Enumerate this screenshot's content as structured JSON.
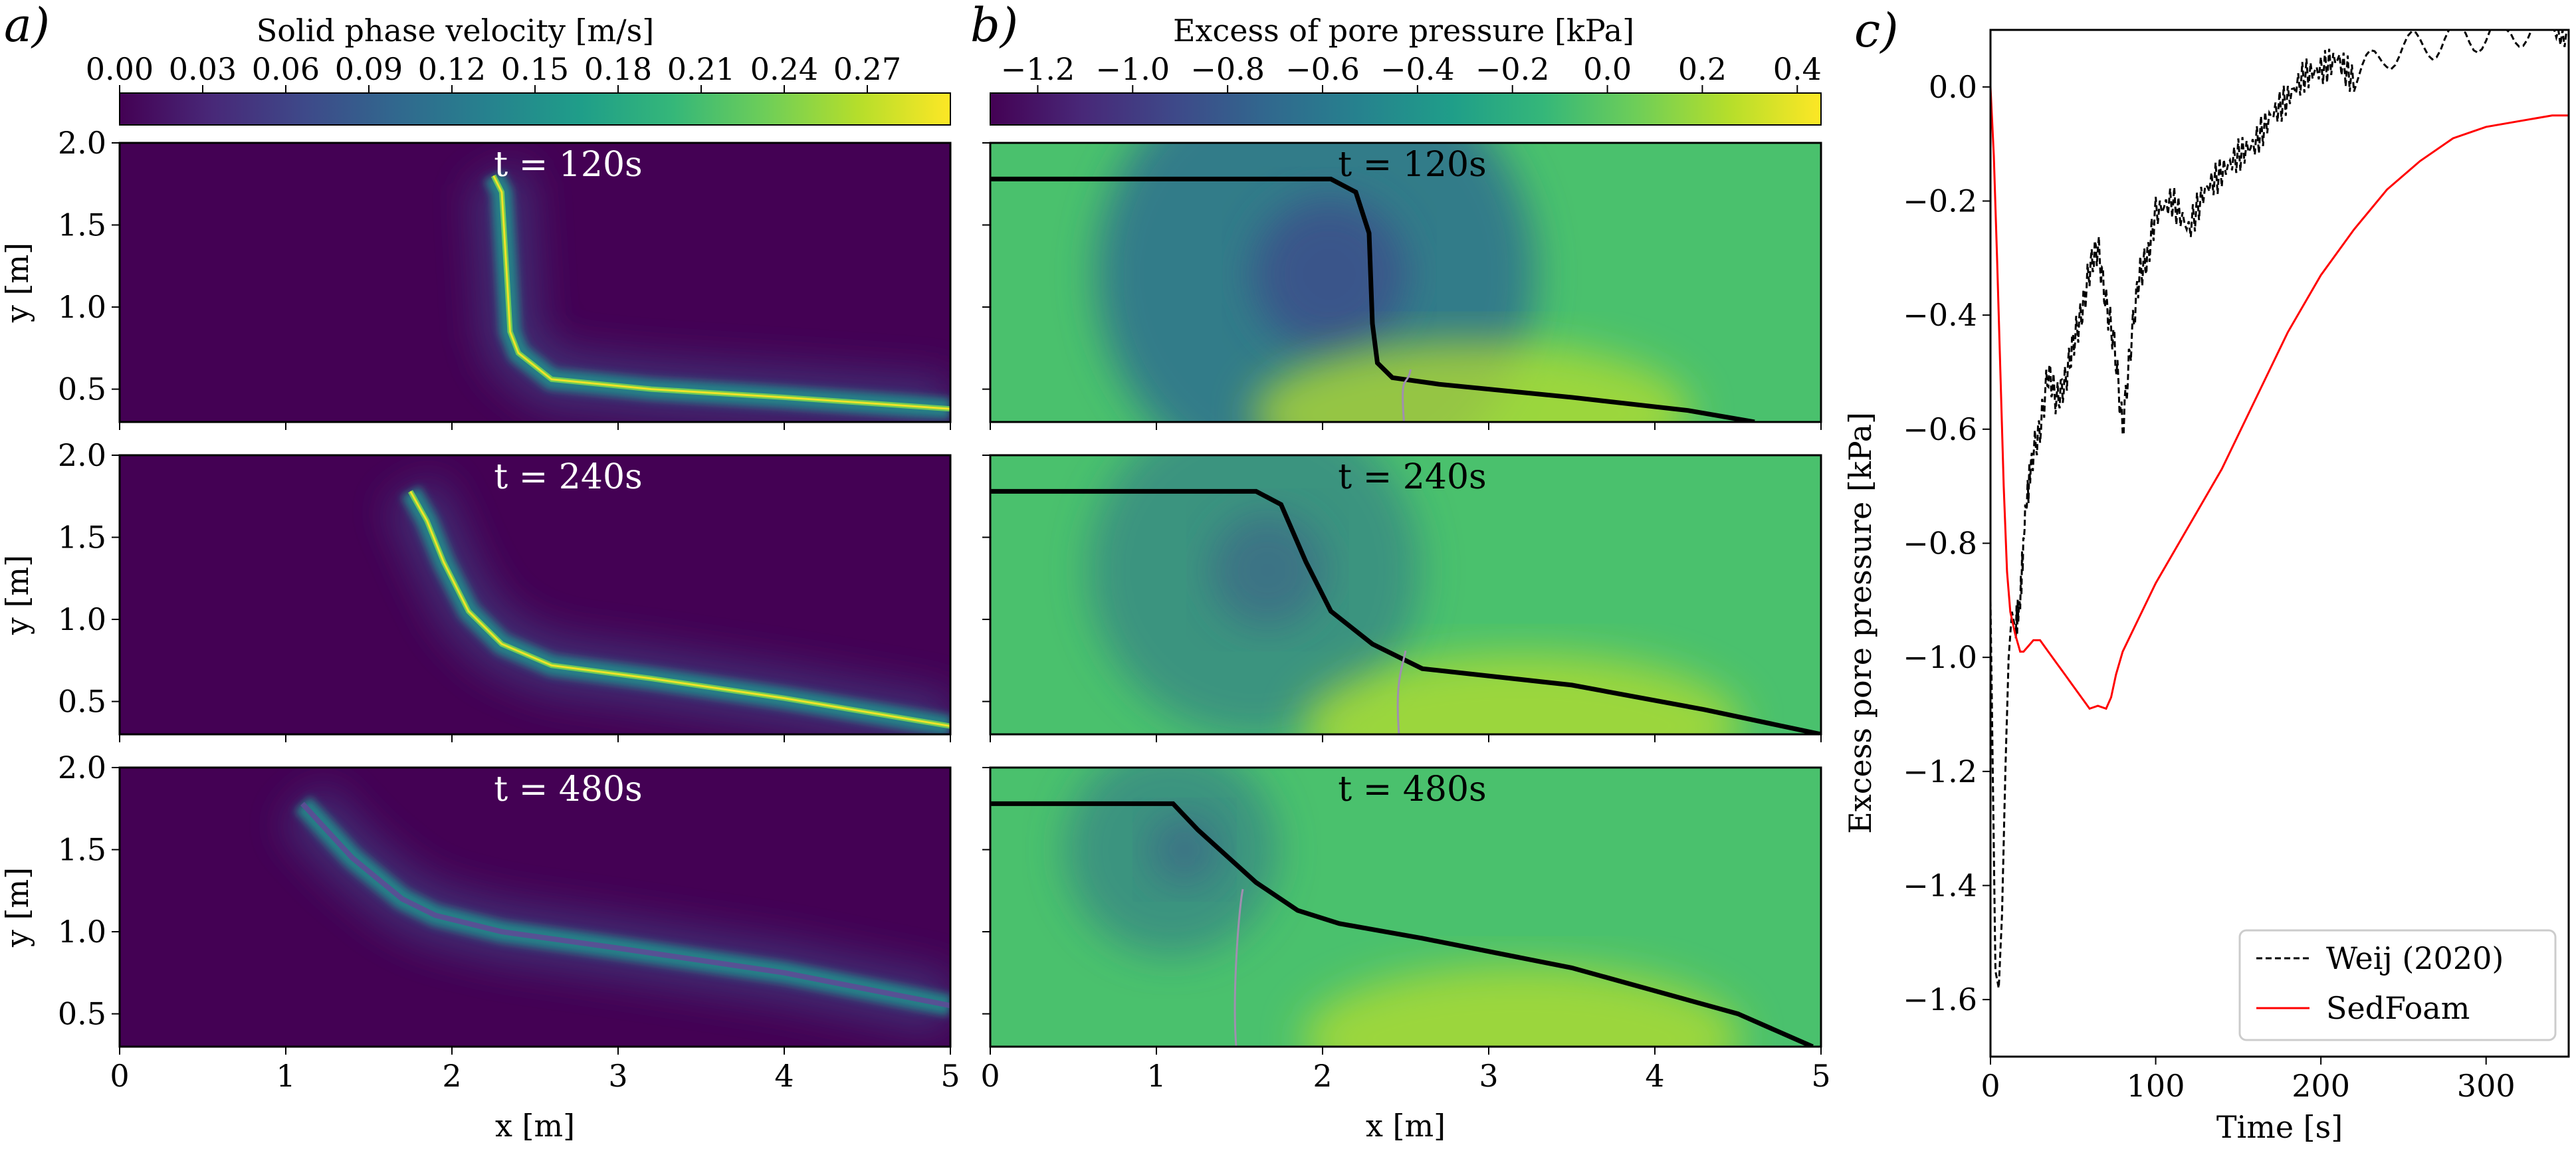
{
  "figure": {
    "panel_labels": [
      "a)",
      "b)",
      "c)"
    ],
    "time_labels": [
      "t = 120s",
      "t = 240s",
      "t = 480s"
    ]
  },
  "colors": {
    "viridis": [
      "#440154",
      "#482878",
      "#3e4989",
      "#31688e",
      "#26828e",
      "#1f9e89",
      "#35b779",
      "#6ece58",
      "#b5de2b",
      "#fde725"
    ],
    "velocity_background": "#440154",
    "pressure_background": "#4ac16d",
    "weij_line": "#000000",
    "sedfoam_line": "#ff0000",
    "bed_line": "#000000"
  },
  "chart_data": [
    {
      "id": "solid-velocity",
      "type": "heatmap",
      "panel": "a)",
      "colorbar": {
        "title": "Solid phase velocity [m/s]",
        "ticks": [
          "0.00",
          "0.03",
          "0.06",
          "0.09",
          "0.12",
          "0.15",
          "0.18",
          "0.21",
          "0.24",
          "0.27"
        ],
        "range": [
          0,
          0.3
        ]
      },
      "xlabel": "x [m]",
      "ylabel": "y [m]",
      "xlim": [
        0,
        5
      ],
      "ylim": [
        0.3,
        2.0
      ],
      "xticks": [
        "0",
        "1",
        "2",
        "3",
        "4",
        "5"
      ],
      "yticks": [
        "0.5",
        "1.0",
        "1.5",
        "2.0"
      ],
      "snapshots": [
        {
          "time": "t = 120s",
          "flow_x": [
            2.25,
            2.3,
            2.33,
            2.35,
            2.4,
            2.6,
            3.2,
            4.0,
            5.0
          ],
          "flow_y": [
            1.8,
            1.7,
            1.2,
            0.85,
            0.72,
            0.56,
            0.5,
            0.45,
            0.38
          ]
        },
        {
          "time": "t = 240s",
          "flow_x": [
            1.75,
            1.85,
            1.95,
            2.1,
            2.3,
            2.6,
            3.2,
            4.0,
            5.0
          ],
          "flow_y": [
            1.78,
            1.6,
            1.35,
            1.05,
            0.85,
            0.72,
            0.64,
            0.52,
            0.35
          ]
        },
        {
          "time": "t = 480s",
          "flow_x": [
            1.1,
            1.4,
            1.7,
            1.9,
            2.3,
            3.0,
            4.0,
            5.0
          ],
          "flow_y": [
            1.78,
            1.45,
            1.2,
            1.1,
            1.0,
            0.9,
            0.75,
            0.55
          ]
        }
      ]
    },
    {
      "id": "pore-pressure",
      "type": "heatmap",
      "panel": "b)",
      "colorbar": {
        "title": "Excess of pore pressure [kPa]",
        "ticks": [
          "−1.2",
          "−1.0",
          "−0.8",
          "−0.6",
          "−0.4",
          "−0.2",
          "0.0",
          "0.2",
          "0.4"
        ],
        "range": [
          -1.3,
          0.45
        ]
      },
      "xlabel": "x [m]",
      "xlim": [
        0,
        5
      ],
      "ylim": [
        0.3,
        2.0
      ],
      "xticks": [
        "0",
        "1",
        "2",
        "3",
        "4",
        "5"
      ],
      "snapshots": [
        {
          "time": "t = 120s",
          "bed_x": [
            0,
            2.05,
            2.2,
            2.28,
            2.3,
            2.33,
            2.42,
            2.7,
            3.5,
            4.2,
            4.6
          ],
          "bed_y": [
            1.78,
            1.78,
            1.7,
            1.45,
            0.9,
            0.66,
            0.57,
            0.53,
            0.45,
            0.37,
            0.3
          ]
        },
        {
          "time": "t = 240s",
          "bed_x": [
            0,
            1.6,
            1.75,
            1.9,
            2.05,
            2.3,
            2.6,
            3.5,
            4.3,
            5.0
          ],
          "bed_y": [
            1.78,
            1.78,
            1.7,
            1.35,
            1.05,
            0.85,
            0.7,
            0.6,
            0.45,
            0.3
          ]
        },
        {
          "time": "t = 480s",
          "bed_x": [
            0,
            1.1,
            1.25,
            1.6,
            1.85,
            2.1,
            2.6,
            3.5,
            4.5,
            4.95
          ],
          "bed_y": [
            1.78,
            1.78,
            1.62,
            1.3,
            1.13,
            1.05,
            0.96,
            0.78,
            0.5,
            0.3
          ]
        }
      ]
    },
    {
      "id": "pressure-timeseries",
      "type": "line",
      "panel": "c)",
      "xlabel": "Time [s]",
      "ylabel": "Excess pore pressure [kPa]",
      "xlim": [
        0,
        350
      ],
      "ylim": [
        -1.7,
        0.1
      ],
      "xticks": [
        "0",
        "100",
        "200",
        "300"
      ],
      "yticks": [
        "−1.6",
        "−1.4",
        "−1.2",
        "−1.0",
        "−0.8",
        "−0.6",
        "−0.4",
        "−0.2",
        "0.0"
      ],
      "legend_position": "bottom-right",
      "series": [
        {
          "name": "Weij (2020)",
          "style": "dashed",
          "x": [
            0,
            3,
            5,
            7,
            9,
            11,
            13,
            15,
            18,
            21,
            25,
            30,
            35,
            40,
            45,
            50,
            55,
            60,
            65,
            70,
            75,
            80,
            85,
            90,
            95,
            100,
            110,
            120,
            130,
            140,
            150,
            160,
            170,
            180,
            190,
            200,
            210,
            220,
            240,
            260,
            280,
            300,
            320,
            340,
            350
          ],
          "y": [
            -0.9,
            -1.55,
            -1.58,
            -1.45,
            -1.2,
            -1.0,
            -0.92,
            -0.95,
            -0.9,
            -0.75,
            -0.65,
            -0.6,
            -0.5,
            -0.55,
            -0.52,
            -0.45,
            -0.4,
            -0.32,
            -0.28,
            -0.38,
            -0.45,
            -0.6,
            -0.45,
            -0.33,
            -0.3,
            -0.22,
            -0.2,
            -0.25,
            -0.18,
            -0.15,
            -0.12,
            -0.1,
            -0.05,
            -0.02,
            0.02,
            0.03,
            0.05,
            0.01,
            0.06,
            0.07,
            0.09,
            0.09,
            0.1,
            0.1,
            0.1
          ]
        },
        {
          "name": "SedFoam",
          "style": "solid",
          "x": [
            0,
            2,
            4,
            6,
            8,
            10,
            12,
            15,
            18,
            20,
            23,
            26,
            30,
            35,
            40,
            45,
            50,
            55,
            60,
            65,
            70,
            73,
            76,
            80,
            90,
            100,
            120,
            140,
            160,
            180,
            200,
            220,
            240,
            260,
            280,
            300,
            320,
            340,
            350
          ],
          "y": [
            0.0,
            -0.12,
            -0.3,
            -0.5,
            -0.7,
            -0.85,
            -0.92,
            -0.96,
            -0.99,
            -0.99,
            -0.98,
            -0.97,
            -0.97,
            -0.99,
            -1.01,
            -1.03,
            -1.05,
            -1.07,
            -1.09,
            -1.085,
            -1.09,
            -1.07,
            -1.03,
            -0.99,
            -0.93,
            -0.87,
            -0.77,
            -0.67,
            -0.55,
            -0.43,
            -0.33,
            -0.25,
            -0.18,
            -0.13,
            -0.09,
            -0.07,
            -0.06,
            -0.05,
            -0.05
          ]
        }
      ]
    }
  ]
}
